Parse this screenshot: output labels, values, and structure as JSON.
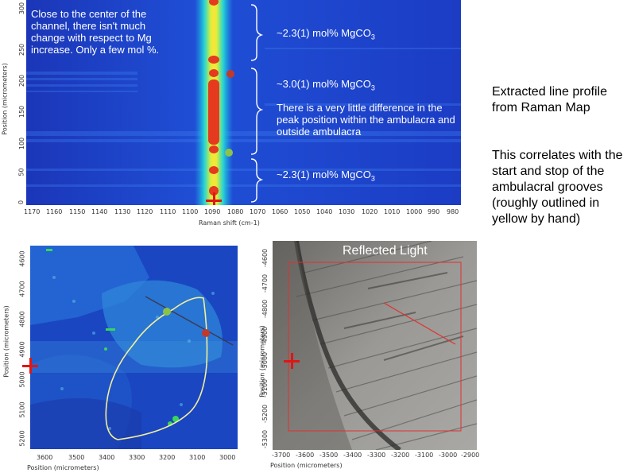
{
  "top_map": {
    "note": "Close to the center of the channel, there isn't much change with respect to Mg increase. Only a few mol %.",
    "label_top": "~2.3(1) mol% MgCO",
    "label_mid": "~3.0(1) mol% MgCO",
    "label_bottom": "~2.3(1) mol% MgCO",
    "subscript": "3",
    "mid_note": "There is a very little difference in the peak position within the ambulacra and outside ambulacra",
    "x_axis_title": "Raman shift (cm-1)",
    "y_axis_title": "Position (micrometers)",
    "x_ticks": [
      "1170",
      "1160",
      "1150",
      "1140",
      "1130",
      "1120",
      "1110",
      "1100",
      "1090",
      "1080",
      "1070",
      "1060",
      "1050",
      "1040",
      "1030",
      "1020",
      "1010",
      "1000",
      "990",
      "980"
    ],
    "y_ticks": [
      "300",
      "250",
      "200",
      "150",
      "100",
      "50",
      "0"
    ],
    "colors": {
      "map_bg": "#1a3fc9",
      "peak": "#e8e83a",
      "dot_red": "#c0392b",
      "dot_green": "#8bc34a"
    }
  },
  "right_text": {
    "title": "Extracted line profile from Raman Map",
    "body": "This correlates with the start and stop of the ambulacral grooves (roughly outlined in yellow by hand)"
  },
  "bottom_left_map": {
    "x_axis_title": "Position (micrometers)",
    "y_axis_title": "Position (micrometers)",
    "x_ticks": [
      "3600",
      "3500",
      "3400",
      "3300",
      "3200",
      "3100",
      "3000"
    ],
    "y_ticks": [
      "4600",
      "4700",
      "4800",
      "4900",
      "5000",
      "5100",
      "5200"
    ]
  },
  "bottom_right_map": {
    "title": "Reflected Light",
    "x_axis_title": "Position (micrometers)",
    "y_axis_title": "Position (micrometers)",
    "x_ticks": [
      "-3700",
      "-3600",
      "-3500",
      "-3400",
      "-3300",
      "-3200",
      "-3100",
      "-3000",
      "-2900"
    ],
    "y_ticks": [
      "-4600",
      "-4700",
      "-4800",
      "-4900",
      "-5000",
      "-5100",
      "-5200",
      "-5300"
    ]
  }
}
